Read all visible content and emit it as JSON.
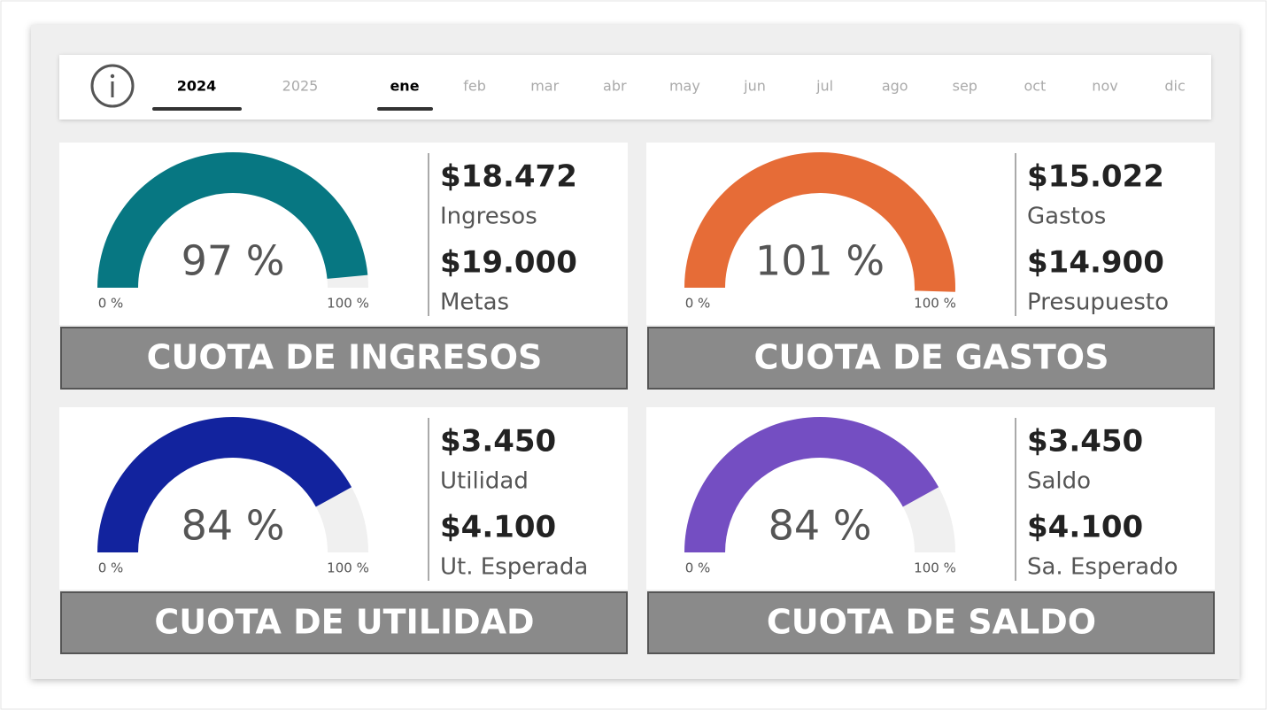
{
  "header": {
    "years": [
      {
        "label": "2024",
        "selected": true
      },
      {
        "label": "2025",
        "selected": false
      }
    ],
    "months": [
      {
        "label": "ene",
        "selected": true
      },
      {
        "label": "feb",
        "selected": false
      },
      {
        "label": "mar",
        "selected": false
      },
      {
        "label": "abr",
        "selected": false
      },
      {
        "label": "may",
        "selected": false
      },
      {
        "label": "jun",
        "selected": false
      },
      {
        "label": "jul",
        "selected": false
      },
      {
        "label": "ago",
        "selected": false
      },
      {
        "label": "sep",
        "selected": false
      },
      {
        "label": "oct",
        "selected": false
      },
      {
        "label": "nov",
        "selected": false
      },
      {
        "label": "dic",
        "selected": false
      }
    ]
  },
  "cards": [
    {
      "title": "CUOTA DE INGRESOS",
      "gauge": {
        "value": 97,
        "label": "97 %",
        "min": 0,
        "max": 100,
        "min_label": "0 %",
        "max_label": "100 %",
        "color": "#077782"
      },
      "actual": {
        "value": "$18.472",
        "label": "Ingresos"
      },
      "target": {
        "value": "$19.000",
        "label": "Metas"
      }
    },
    {
      "title": "CUOTA DE GASTOS",
      "gauge": {
        "value": 101,
        "label": "101 %",
        "min": 0,
        "max": 100,
        "min_label": "0 %",
        "max_label": "100 %",
        "color": "#e66c37"
      },
      "actual": {
        "value": "$15.022",
        "label": "Gastos"
      },
      "target": {
        "value": "$14.900",
        "label": "Presupuesto"
      }
    },
    {
      "title": "CUOTA DE UTILIDAD",
      "gauge": {
        "value": 84,
        "label": "84 %",
        "min": 0,
        "max": 100,
        "min_label": "0 %",
        "max_label": "100 %",
        "color": "#12239e"
      },
      "actual": {
        "value": "$3.450",
        "label": "Utilidad"
      },
      "target": {
        "value": "$4.100",
        "label": "Ut. Esperada"
      }
    },
    {
      "title": "CUOTA DE SALDO",
      "gauge": {
        "value": 84,
        "label": "84 %",
        "min": 0,
        "max": 100,
        "min_label": "0 %",
        "max_label": "100 %",
        "color": "#744ec2"
      },
      "actual": {
        "value": "$3.450",
        "label": "Saldo"
      },
      "target": {
        "value": "$4.100",
        "label": "Sa. Esperado"
      }
    }
  ]
}
